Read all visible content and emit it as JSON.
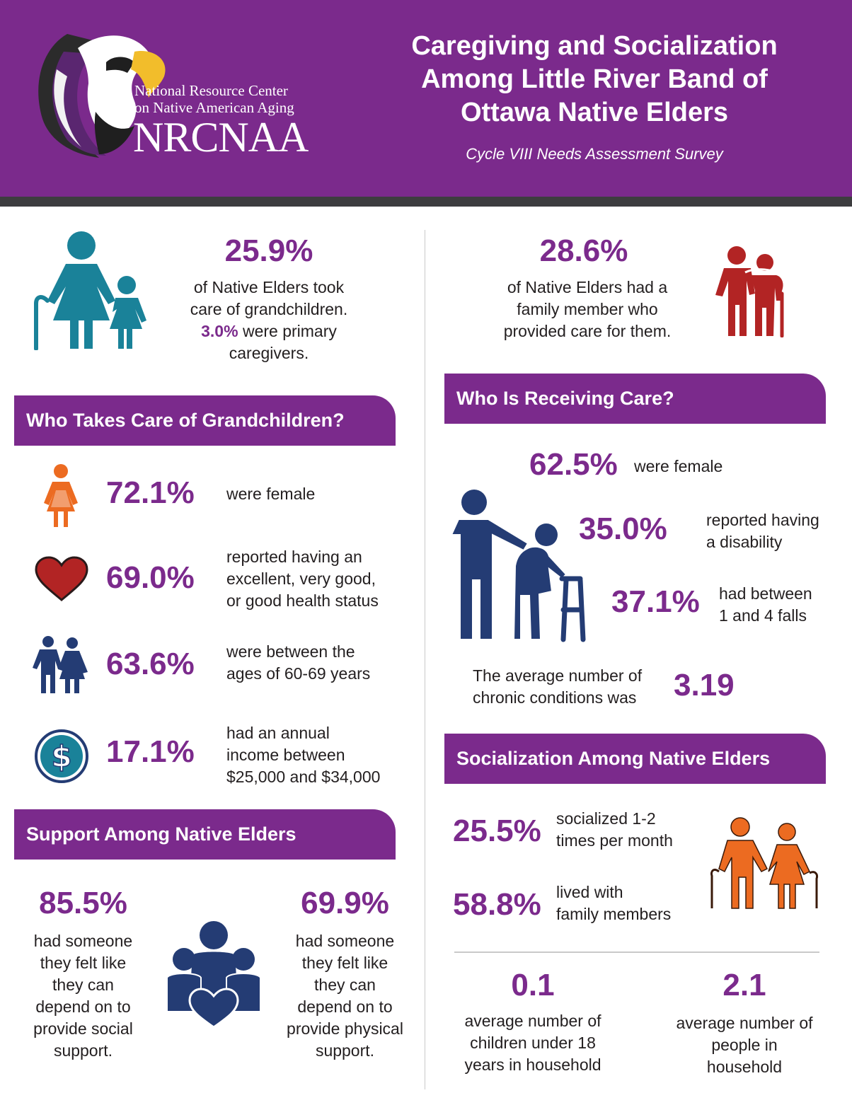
{
  "header": {
    "logo": {
      "line1": "National Resource Center",
      "line2": "on Native American Aging",
      "abbr": "NRCNAA"
    },
    "title": "Caregiving and Socialization Among Little River Band of Ottawa Native Elders",
    "subtitle": "Cycle VIII Needs Assessment Survey"
  },
  "colors": {
    "purple": "#7b2a8c",
    "teal": "#1a8299",
    "navy": "#243c74",
    "red": "#b22424",
    "orange": "#ec6b21"
  },
  "grandchildren_care": {
    "percent": "25.9%",
    "text1": "of Native Elders took",
    "text2": "care of grandchildren.",
    "primary_percent": "3.0%",
    "text3": " were primary",
    "text4": "caregivers.",
    "icon": "grandparent-child-icon"
  },
  "family_care": {
    "percent": "28.6%",
    "text1": "of Native Elders had a",
    "text2": "family member who",
    "text3": "provided care for them.",
    "icon": "elder-couple-icon"
  },
  "who_takes_care": {
    "heading": "Who Takes Care of Grandchildren?",
    "items": [
      {
        "icon": "female-icon",
        "value": "72.1%",
        "lines": [
          "were female"
        ]
      },
      {
        "icon": "heart-icon",
        "value": "69.0%",
        "lines": [
          "reported having an",
          "excellent, very good,",
          "or good health status"
        ]
      },
      {
        "icon": "couple-icon",
        "value": "63.6%",
        "lines": [
          "were between the",
          "ages of 60-69 years"
        ]
      },
      {
        "icon": "dollar-icon",
        "value": "17.1%",
        "lines": [
          "had an annual",
          "income between",
          "$25,000 and $34,000"
        ]
      }
    ]
  },
  "who_receiving": {
    "heading": "Who Is Receiving Care?",
    "female": {
      "value": "62.5%",
      "label": "were female"
    },
    "disability": {
      "value": "35.0%",
      "lines": [
        "reported having",
        "a disability"
      ]
    },
    "falls": {
      "value": "37.1%",
      "lines": [
        "had between",
        "1 and 4 falls"
      ]
    },
    "chronic": {
      "lines": [
        "The average number of",
        "chronic conditions was"
      ],
      "value": "3.19"
    }
  },
  "support": {
    "heading": "Support Among Native Elders",
    "social": {
      "value": "85.5%",
      "lines": [
        "had someone",
        "they felt like",
        "they can",
        "depend on to",
        "provide social",
        "support."
      ]
    },
    "physical": {
      "value": "69.9%",
      "lines": [
        "had someone",
        "they felt like",
        "they can",
        "depend on to",
        "provide physical",
        "support."
      ]
    }
  },
  "socialization": {
    "heading": "Socialization Among Native Elders",
    "monthly": {
      "value": "25.5%",
      "lines": [
        "socialized 1-2",
        "times per month"
      ]
    },
    "family": {
      "value": "58.8%",
      "lines": [
        "lived with",
        "family members"
      ]
    },
    "children": {
      "value": "0.1",
      "lines": [
        "average number of",
        "children under 18",
        "years in household"
      ]
    },
    "people": {
      "value": "2.1",
      "lines": [
        "average number of",
        "people in",
        "household"
      ]
    }
  }
}
